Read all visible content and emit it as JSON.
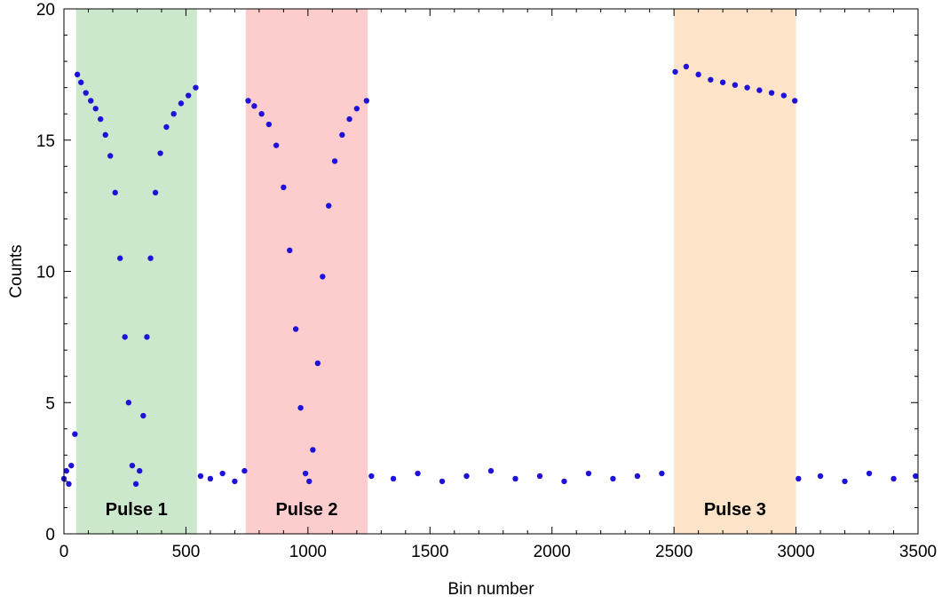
{
  "chart_data": {
    "type": "scatter",
    "title": "",
    "xlabel": "Bin number",
    "ylabel": "Counts",
    "xlim": [
      0,
      3500
    ],
    "ylim": [
      0,
      20
    ],
    "x_ticks": [
      0,
      500,
      1000,
      1500,
      2000,
      2500,
      3000,
      3500
    ],
    "y_ticks": [
      0,
      5,
      10,
      15,
      20
    ],
    "grid": false,
    "point_color": "#1f12d8",
    "regions": [
      {
        "label": "Pulse 1",
        "x_start": 50,
        "x_end": 545,
        "color": "#cce8cc"
      },
      {
        "label": "Pulse 2",
        "x_start": 745,
        "x_end": 1245,
        "color": "#fdcccc"
      },
      {
        "label": "Pulse 3",
        "x_start": 2500,
        "x_end": 3000,
        "color": "#fde3c8"
      }
    ],
    "series": [
      {
        "points": [
          [
            0,
            2.1
          ],
          [
            10,
            2.4
          ],
          [
            20,
            1.9
          ],
          [
            30,
            2.6
          ],
          [
            45,
            3.8
          ],
          [
            55,
            17.5
          ],
          [
            70,
            17.2
          ],
          [
            90,
            16.8
          ],
          [
            110,
            16.5
          ],
          [
            130,
            16.2
          ],
          [
            150,
            15.8
          ],
          [
            170,
            15.2
          ],
          [
            190,
            14.4
          ],
          [
            210,
            13.0
          ],
          [
            230,
            10.5
          ],
          [
            250,
            7.5
          ],
          [
            265,
            5.0
          ],
          [
            280,
            2.6
          ],
          [
            295,
            1.9
          ],
          [
            310,
            2.4
          ],
          [
            325,
            4.5
          ],
          [
            340,
            7.5
          ],
          [
            355,
            10.5
          ],
          [
            375,
            13.0
          ],
          [
            395,
            14.5
          ],
          [
            420,
            15.5
          ],
          [
            450,
            16.0
          ],
          [
            480,
            16.4
          ],
          [
            510,
            16.7
          ],
          [
            540,
            17.0
          ],
          [
            560,
            2.2
          ],
          [
            600,
            2.1
          ],
          [
            650,
            2.3
          ],
          [
            700,
            2.0
          ],
          [
            740,
            2.4
          ],
          [
            755,
            16.5
          ],
          [
            780,
            16.3
          ],
          [
            810,
            16.0
          ],
          [
            840,
            15.6
          ],
          [
            870,
            14.8
          ],
          [
            900,
            13.2
          ],
          [
            925,
            10.8
          ],
          [
            950,
            7.8
          ],
          [
            970,
            4.8
          ],
          [
            990,
            2.3
          ],
          [
            1005,
            2.0
          ],
          [
            1020,
            3.2
          ],
          [
            1040,
            6.5
          ],
          [
            1060,
            9.8
          ],
          [
            1085,
            12.5
          ],
          [
            1110,
            14.2
          ],
          [
            1140,
            15.2
          ],
          [
            1170,
            15.8
          ],
          [
            1200,
            16.2
          ],
          [
            1240,
            16.5
          ],
          [
            1260,
            2.2
          ],
          [
            1350,
            2.1
          ],
          [
            1450,
            2.3
          ],
          [
            1550,
            2.0
          ],
          [
            1650,
            2.2
          ],
          [
            1750,
            2.4
          ],
          [
            1850,
            2.1
          ],
          [
            1950,
            2.2
          ],
          [
            2050,
            2.0
          ],
          [
            2150,
            2.3
          ],
          [
            2250,
            2.1
          ],
          [
            2350,
            2.2
          ],
          [
            2450,
            2.3
          ],
          [
            2505,
            17.6
          ],
          [
            2550,
            17.8
          ],
          [
            2600,
            17.5
          ],
          [
            2650,
            17.3
          ],
          [
            2700,
            17.2
          ],
          [
            2750,
            17.1
          ],
          [
            2800,
            17.0
          ],
          [
            2850,
            16.9
          ],
          [
            2900,
            16.8
          ],
          [
            2950,
            16.7
          ],
          [
            2995,
            16.5
          ],
          [
            3010,
            2.1
          ],
          [
            3100,
            2.2
          ],
          [
            3200,
            2.0
          ],
          [
            3300,
            2.3
          ],
          [
            3400,
            2.1
          ],
          [
            3490,
            2.2
          ]
        ]
      }
    ]
  }
}
